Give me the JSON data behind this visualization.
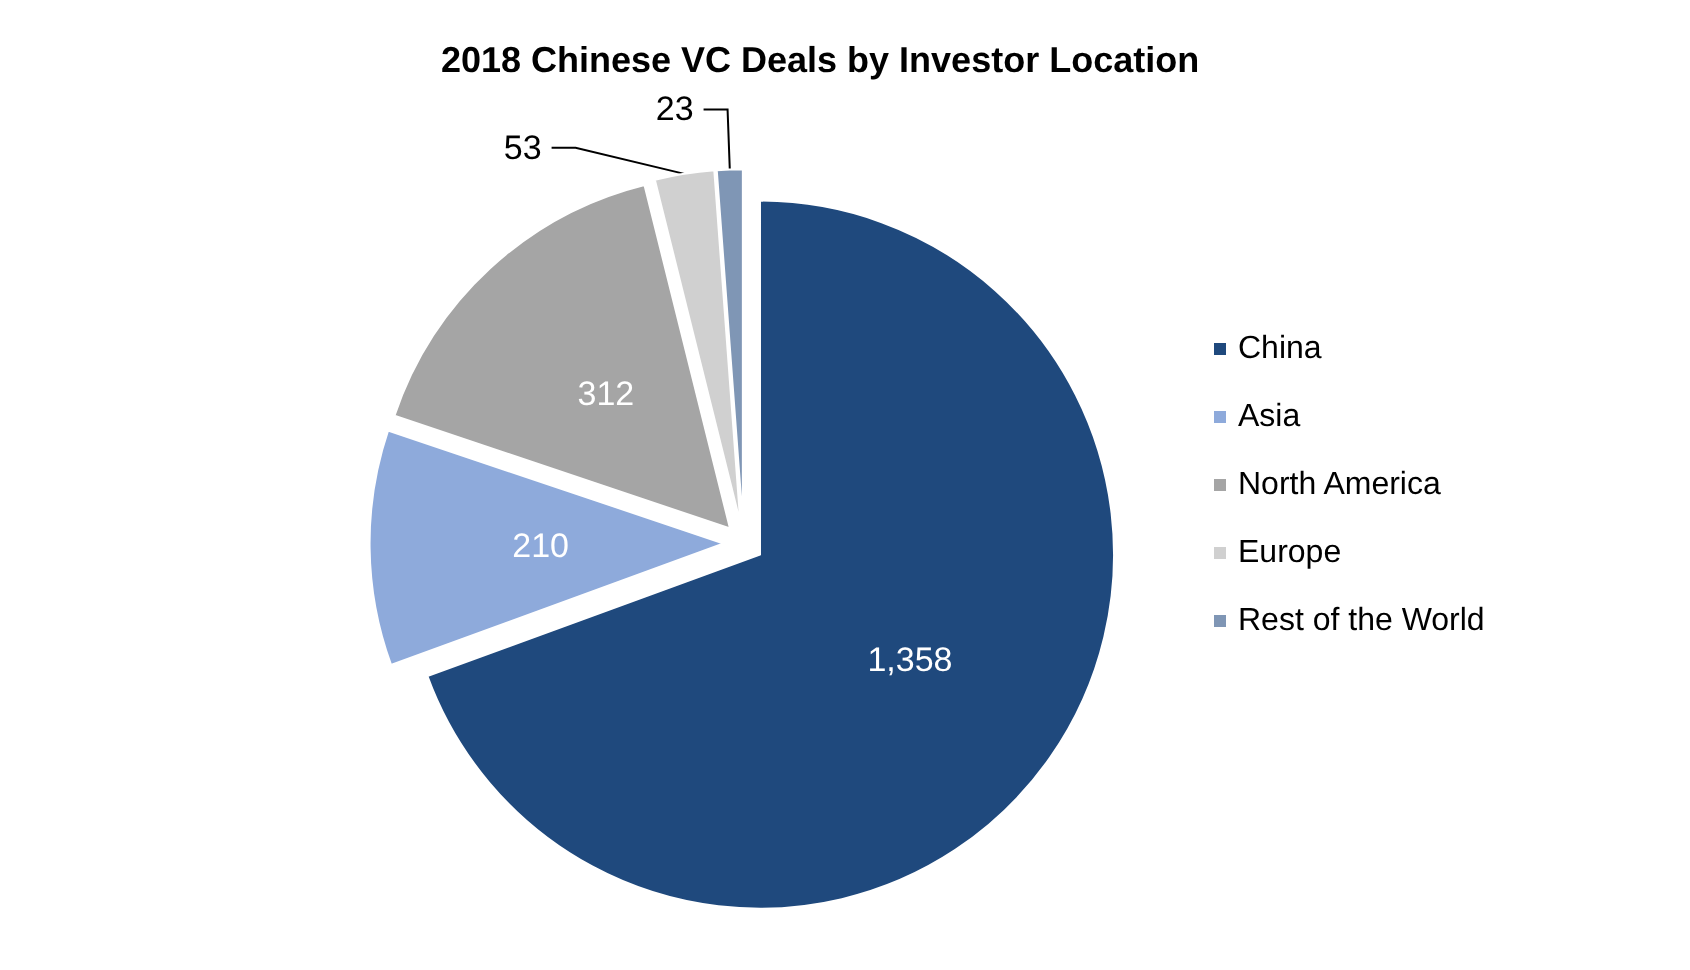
{
  "chart_data": {
    "type": "pie",
    "title": "2018 Chinese VC Deals by Investor Location",
    "categories": [
      "China",
      "Asia",
      "North America",
      "Europe",
      "Rest of the World"
    ],
    "values": [
      1358,
      210,
      312,
      53,
      23
    ],
    "value_labels": [
      "1,358",
      "210",
      "312",
      "53",
      "23"
    ],
    "colors": [
      "#1f497d",
      "#8eaadb",
      "#a5a5a5",
      "#d0d0d0",
      "#7f96b5"
    ],
    "legend": "right"
  }
}
